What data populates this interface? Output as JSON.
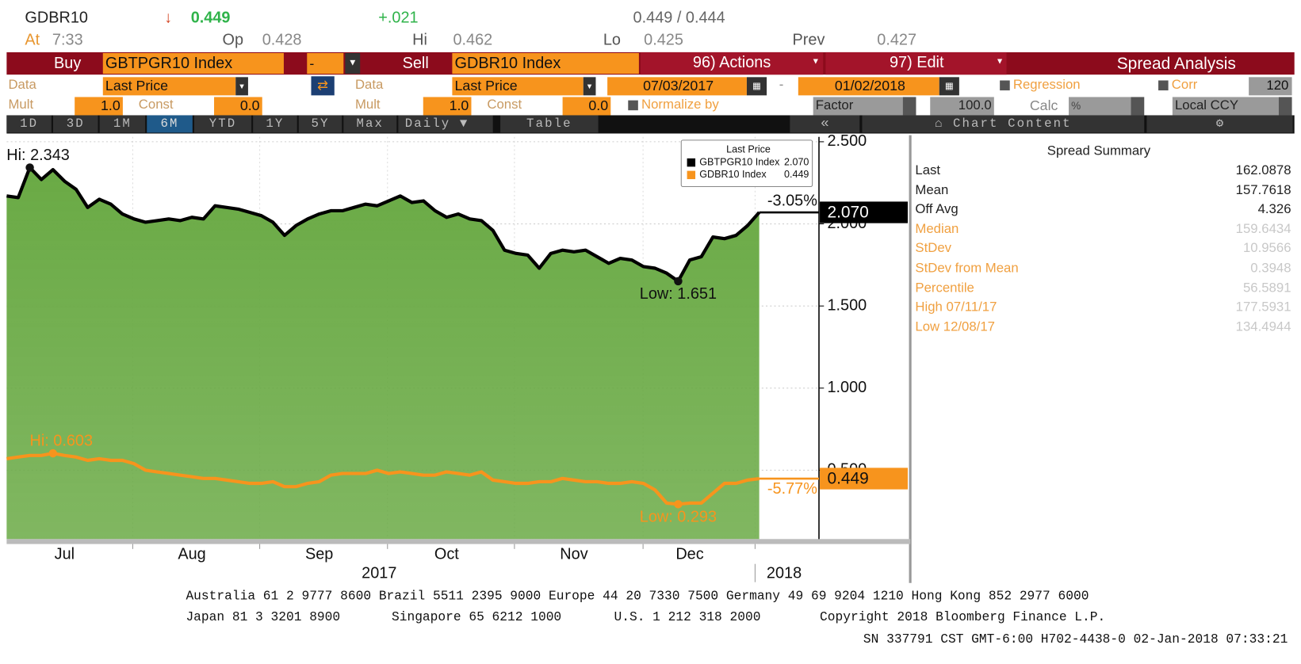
{
  "header": {
    "ticker": "GDBR10",
    "arrow": "↓",
    "last": "0.449",
    "change": "+.021",
    "bid_ask": "0.449 / 0.444",
    "at_label": "At",
    "time": "7:33",
    "op_label": "Op",
    "op": "0.428",
    "hi_label": "Hi",
    "hi": "0.462",
    "lo_label": "Lo",
    "lo": "0.425",
    "prev_label": "Prev",
    "prev": "0.427"
  },
  "toolbar": {
    "buy": "Buy",
    "buy_security": "GBTPGR10 Index",
    "dash": "-",
    "sell": "Sell",
    "sell_security": "GDBR10 Index",
    "actions": "96) Actions",
    "edit": "97) Edit",
    "spread_analysis": "Spread Analysis",
    "data_label_1": "Data",
    "data_field_1": "Last Price",
    "data_label_2": "Data",
    "data_field_2": "Last Price",
    "start_date": "07/03/2017",
    "date_sep": "-",
    "end_date": "01/02/2018",
    "regression": "Regression",
    "corr": "Corr",
    "corr_period": "120",
    "mult_label_1": "Mult",
    "mult_1": "1.0",
    "const_label_1": "Const",
    "const_1": "0.0",
    "mult_label_2": "Mult",
    "mult_2": "1.0",
    "const_label_2": "Const",
    "const_2": "0.0",
    "normalize": "Normalize by",
    "factor": "Factor",
    "factor_value": "100.0",
    "calc": "Calc",
    "calc_value": "%",
    "currency": "Local CCY",
    "periods": [
      "1D",
      "3D",
      "1M",
      "6M",
      "YTD",
      "1Y",
      "5Y",
      "Max"
    ],
    "frequency": "Daily",
    "table": "Table",
    "chart_content": "Chart Content"
  },
  "chart_data": {
    "type": "line",
    "legend_title": "Last Price",
    "categories": [
      null,
      null,
      null,
      null,
      null,
      "Jul",
      null,
      null,
      null,
      null,
      null,
      null,
      null,
      null,
      null,
      null,
      "Aug",
      null,
      null,
      null,
      null,
      null,
      null,
      null,
      null,
      null,
      null,
      "Sep",
      null,
      null,
      null,
      null,
      null,
      null,
      null,
      null,
      null,
      null,
      "Oct",
      null,
      null,
      null,
      null,
      null,
      null,
      null,
      null,
      null,
      null,
      "Nov",
      null,
      null,
      null,
      null,
      null,
      null,
      null,
      null,
      null,
      "Dec",
      null,
      null,
      null,
      null,
      null,
      null
    ],
    "year_labels": [
      "2017",
      "2018"
    ],
    "series": [
      {
        "name": "GBTPGR10 Index",
        "color": "#000000",
        "values": [
          2.17,
          2.16,
          2.343,
          2.27,
          2.33,
          2.26,
          2.21,
          2.1,
          2.15,
          2.12,
          2.06,
          2.03,
          2.01,
          2.02,
          2.03,
          2.02,
          2.04,
          2.03,
          2.11,
          2.1,
          2.09,
          2.07,
          2.05,
          2.01,
          1.93,
          1.99,
          2.03,
          2.06,
          2.08,
          2.08,
          2.1,
          2.12,
          2.11,
          2.14,
          2.17,
          2.13,
          2.14,
          2.08,
          2.04,
          2.06,
          2.03,
          2.02,
          1.96,
          1.84,
          1.82,
          1.81,
          1.73,
          1.82,
          1.84,
          1.83,
          1.84,
          1.8,
          1.76,
          1.79,
          1.78,
          1.74,
          1.73,
          1.7,
          1.651,
          1.78,
          1.8,
          1.92,
          1.91,
          1.93,
          1.99,
          2.07
        ]
      },
      {
        "name": "GDBR10 Index",
        "color": "#f7941d",
        "values": [
          0.57,
          0.58,
          0.59,
          0.59,
          0.603,
          0.59,
          0.58,
          0.56,
          0.57,
          0.56,
          0.56,
          0.54,
          0.5,
          0.49,
          0.48,
          0.47,
          0.46,
          0.45,
          0.45,
          0.44,
          0.43,
          0.42,
          0.42,
          0.43,
          0.4,
          0.4,
          0.42,
          0.43,
          0.47,
          0.48,
          0.48,
          0.48,
          0.5,
          0.48,
          0.49,
          0.48,
          0.47,
          0.47,
          0.49,
          0.48,
          0.47,
          0.49,
          0.44,
          0.43,
          0.42,
          0.42,
          0.43,
          0.43,
          0.45,
          0.44,
          0.43,
          0.43,
          0.42,
          0.42,
          0.43,
          0.42,
          0.38,
          0.3,
          0.293,
          0.3,
          0.3,
          0.36,
          0.42,
          0.42,
          0.44,
          0.449
        ]
      }
    ],
    "fill_color": "#6aaa45",
    "hi_labels": [
      "Hi: 2.343",
      "Hi: 0.603"
    ],
    "low_labels": [
      "Low: 1.651",
      "Low: 0.293"
    ],
    "change_labels": [
      "-3.05%",
      "-5.77%"
    ],
    "last_labels": [
      "2.070",
      "0.449"
    ],
    "ylim": [
      0.081,
      2.53
    ],
    "yticks": [
      {
        "value": 0.5,
        "label": "0.500"
      },
      {
        "value": 1,
        "label": "1.000"
      },
      {
        "value": 1.5,
        "label": "1.500"
      },
      {
        "value": 2,
        "label": "2.000"
      },
      {
        "value": 2.5,
        "label": "2.500"
      }
    ],
    "grid": true
  },
  "summary": {
    "title": "Spread Summary",
    "rows": [
      [
        "Last",
        "162.0878"
      ],
      [
        "Mean",
        "157.7618"
      ],
      [
        "Off Avg",
        "4.326"
      ],
      [
        "Median",
        "159.6434"
      ],
      [
        "StDev",
        "10.9566"
      ],
      [
        "StDev from Mean",
        "0.3948"
      ],
      [
        "Percentile",
        "56.5891"
      ],
      [
        "High 07/11/17",
        "177.5931"
      ],
      [
        "Low 12/08/17",
        "134.4944"
      ]
    ]
  },
  "footer": {
    "line1": "Australia 61 2 9777 8600 Brazil 5511 2395 9000 Europe 44 20 7330 7500 Germany 49 69 9204 1210 Hong Kong 852 2977 6000",
    "line2": [
      "Japan 81 3 3201 8900",
      "Singapore 65 6212 1000",
      "U.S. 1 212 318 2000",
      "Copyright 2018 Bloomberg Finance L.P."
    ],
    "line3": "SN 337791 CST  GMT-6:00 H702-4438-0 02-Jan-2018 07:33:21"
  }
}
